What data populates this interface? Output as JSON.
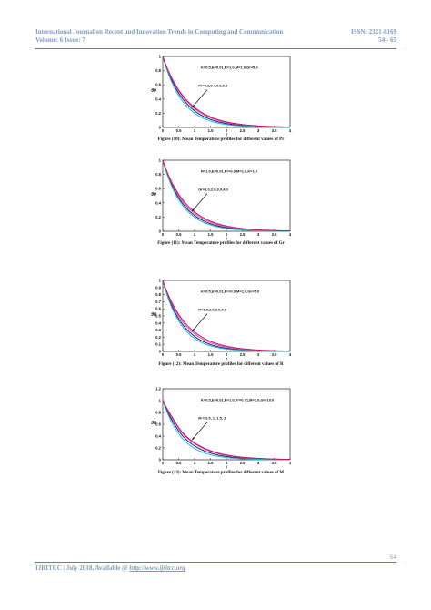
{
  "header": {
    "journal": "International Journal on Recent and Innovation Trends in Computing and Communication",
    "issn": "ISSN: 2321-8169",
    "volume": "Volume: 6 Issue: 7",
    "pages": "54 - 65"
  },
  "footer": {
    "text": "IJRITCC | July 2018, Available @ ",
    "link": "http://www.ijritcc.org",
    "page_number": "64"
  },
  "colors": {
    "header": "#7a9cc6",
    "rule": "#c95a5a"
  },
  "chart_data": [
    {
      "type": "line",
      "caption": "Figure (10): Mean Temperature profiles for different values of Pr",
      "params": "K=0.5,E=0.01,R=1.0,M=1.0,Gr=5.0",
      "arrow_label": "Pr=0.2,0.4,0.6,0.8",
      "ylabel": "θ0",
      "xlabel": "y",
      "xlim": [
        0,
        4
      ],
      "ylim": [
        0,
        1
      ],
      "xticks": [
        "0",
        "0.5",
        "1",
        "1.5",
        "2",
        "2.5",
        "3",
        "3.5",
        "4"
      ],
      "yticks": [
        "0",
        "0.2",
        "0.4",
        "0.6",
        "0.8",
        "1"
      ],
      "series": [
        {
          "color": "#1a1a8c",
          "decay": 1.45
        },
        {
          "color": "#d94fb0",
          "decay": 1.33
        },
        {
          "color": "#22b8cf",
          "decay": 1.6
        },
        {
          "color": "#c0185a",
          "decay": 1.27
        }
      ]
    },
    {
      "type": "line",
      "caption": "Figure (11): Mean Temperature profiles for different values of Gr",
      "params": "R=1.0,E=0.01,Pr=0.9,M=1.0,K=1.0",
      "arrow_label": "Gr=1.0,2.0,3.0,4.0",
      "ylabel": "θ0",
      "xlabel": "y",
      "xlim": [
        0,
        4
      ],
      "ylim": [
        0,
        1
      ],
      "xticks": [
        "0",
        "0.5",
        "1",
        "1.5",
        "2",
        "2.5",
        "3",
        "3.5",
        "4"
      ],
      "yticks": [
        "0",
        "0.2",
        "0.4",
        "0.6",
        "0.8",
        "1"
      ],
      "series": [
        {
          "color": "#1a1a8c",
          "decay": 1.5
        },
        {
          "color": "#d94fb0",
          "decay": 1.38
        },
        {
          "color": "#22b8cf",
          "decay": 1.62
        },
        {
          "color": "#c0185a",
          "decay": 1.3
        }
      ]
    },
    {
      "type": "line",
      "caption": "Figure (12): Mean Temperature profiles for different values of R",
      "params": "K=0.5,E=0.01,Pr=0.9,M=1.0,Gr=5.0",
      "arrow_label": "R=1.0,2.0,3.0,4.0",
      "ylabel": "θ0",
      "xlabel": "y",
      "xlim": [
        0,
        4
      ],
      "ylim": [
        0,
        1
      ],
      "xticks": [
        "0",
        "0.5",
        "1",
        "1.5",
        "2",
        "2.5",
        "3",
        "3.5",
        "4"
      ],
      "yticks": [
        "0",
        "0.1",
        "0.2",
        "0.3",
        "0.4",
        "0.5",
        "0.6",
        "0.7",
        "0.8",
        "0.9",
        "1"
      ],
      "series": [
        {
          "color": "#1a1a8c",
          "decay": 1.55
        },
        {
          "color": "#d94fb0",
          "decay": 1.4
        },
        {
          "color": "#22b8cf",
          "decay": 1.7
        },
        {
          "color": "#c0185a",
          "decay": 1.3
        }
      ]
    },
    {
      "type": "line",
      "caption": "Figure (13): Mean Temperature profiles for different values of M",
      "params": "K=0.5,E=0.01,R=1.0,Pr=0.71,M=1.0,Gr=10.0",
      "arrow_label": "M = 0.5, 1, 1.5, 2",
      "ylabel": "θ0",
      "xlabel": "y",
      "xlim": [
        0,
        4
      ],
      "ylim": [
        0,
        1.2
      ],
      "xticks": [
        "0",
        "0.5",
        "1",
        "1.5",
        "2",
        "2.5",
        "3",
        "3.5",
        "4"
      ],
      "yticks": [
        "0",
        "0.2",
        "0.4",
        "0.6",
        "0.8",
        "1",
        "1.2"
      ],
      "series": [
        {
          "color": "#1a1a8c",
          "decay": 1.45,
          "peak": 0.02
        },
        {
          "color": "#d94fb0",
          "decay": 1.3,
          "peak": 0.03
        },
        {
          "color": "#22b8cf",
          "decay": 1.65,
          "peak": 0.01
        },
        {
          "color": "#c0185a",
          "decay": 1.25,
          "peak": 0.04
        }
      ]
    }
  ]
}
